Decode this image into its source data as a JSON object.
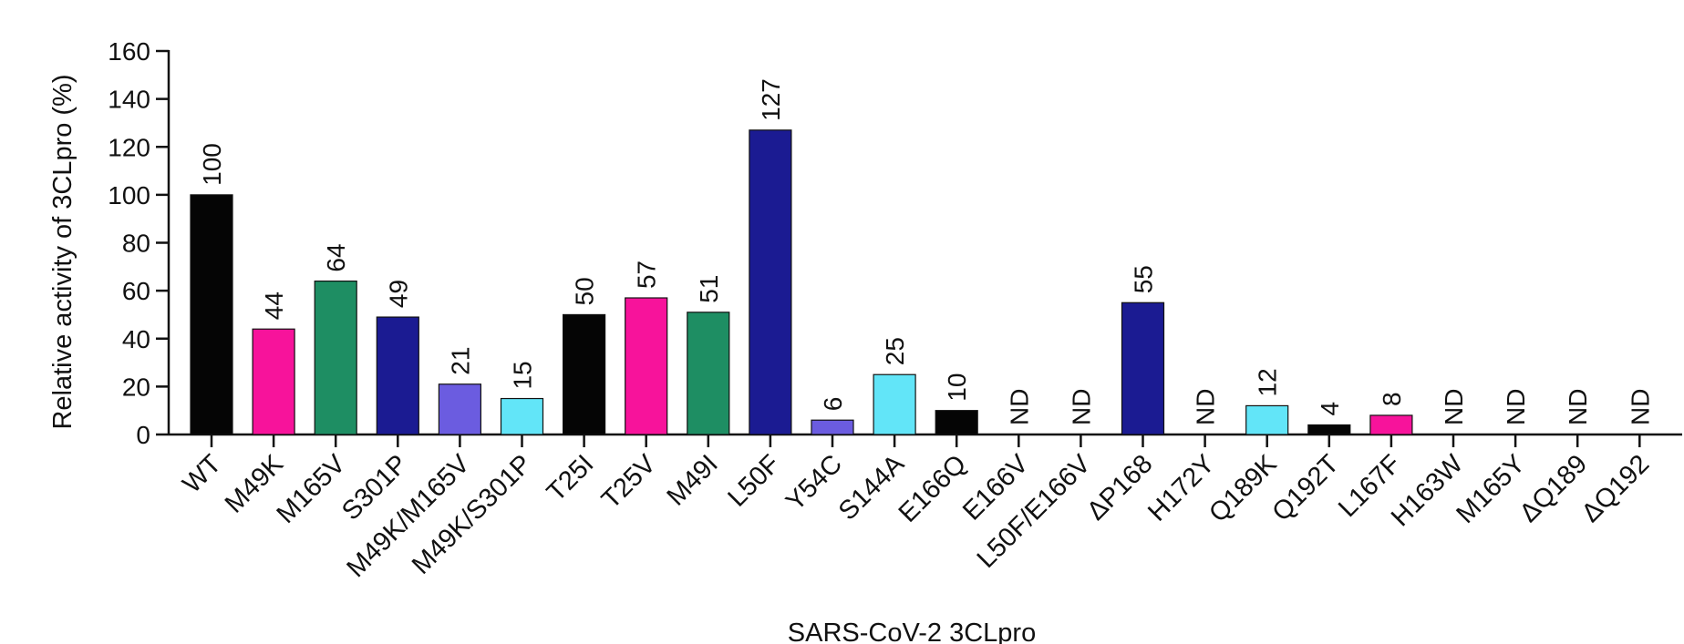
{
  "chart_data": {
    "type": "bar",
    "xlabel": "SARS-CoV-2 3CLpro",
    "ylabel": "Relative activity of 3CLpro (%)",
    "ylim": [
      0,
      160
    ],
    "yticks": [
      0,
      20,
      40,
      60,
      80,
      100,
      120,
      140,
      160
    ],
    "grid": false,
    "categories": [
      "WT",
      "M49K",
      "M165V",
      "S301P",
      "M49K/M165V",
      "M49K/S301P",
      "T25I",
      "T25V",
      "M49I",
      "L50F",
      "Y54C",
      "S144A",
      "E166Q",
      "E166V",
      "L50F/E166V",
      "ΔP168",
      "H172Y",
      "Q189K",
      "Q192T",
      "L167F",
      "H163W",
      "M165Y",
      "ΔQ189",
      "ΔQ192"
    ],
    "values": [
      100,
      44,
      64,
      49,
      21,
      15,
      50,
      57,
      51,
      127,
      6,
      25,
      10,
      null,
      null,
      55,
      null,
      12,
      4,
      8,
      null,
      null,
      null,
      null
    ],
    "value_labels": [
      "100",
      "44",
      "64",
      "49",
      "21",
      "15",
      "50",
      "57",
      "51",
      "127",
      "6",
      "25",
      "10",
      "ND",
      "ND",
      "55",
      "ND",
      "12",
      "4",
      "8",
      "ND",
      "ND",
      "ND",
      "ND"
    ],
    "bar_colors": [
      "#050505",
      "#f7139b",
      "#1e8e63",
      "#1b1b92",
      "#6b5ce0",
      "#62e5f8",
      "#050505",
      "#f7139b",
      "#1e8e63",
      "#1b1b92",
      "#6b5ce0",
      "#62e5f8",
      "#050505",
      "#f7139b",
      "#1e8e63",
      "#1b1b92",
      "#6b5ce0",
      "#62e5f8",
      "#050505",
      "#f7139b",
      "#1e8e63",
      "#1b1b92",
      "#6b5ce0",
      "#62e5f8"
    ]
  }
}
